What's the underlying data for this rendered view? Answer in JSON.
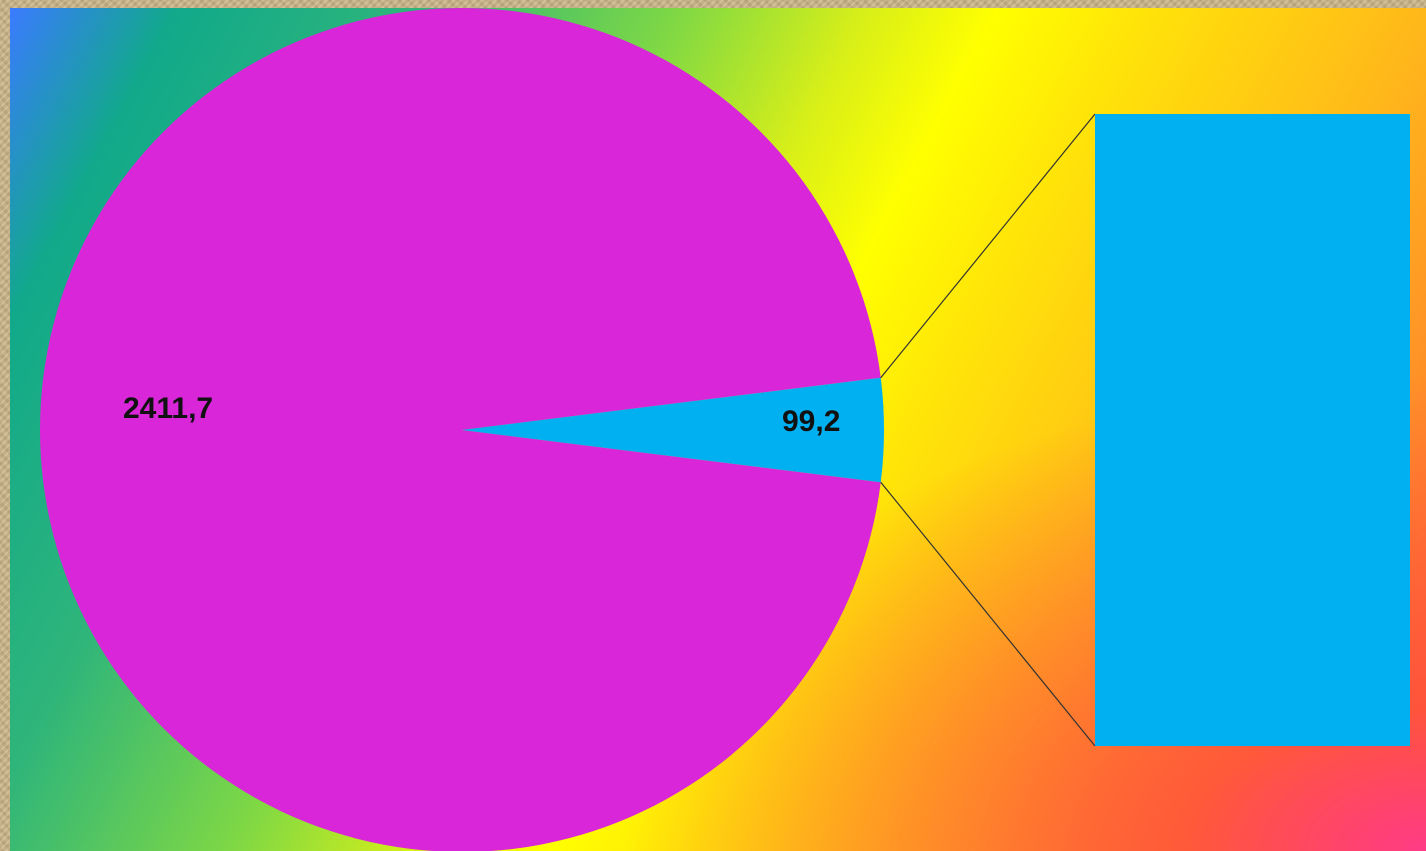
{
  "chart_data": {
    "type": "pie",
    "subtype": "pie-of-pie",
    "slices": [
      {
        "label": "2411,7",
        "value": 2411.7,
        "color": "#d826d8"
      },
      {
        "label": "99,2",
        "value": 99.2,
        "color": "#00b0f0"
      }
    ],
    "secondary": {
      "shape": "bar",
      "values": [
        99.2
      ],
      "color": "#00b0f0"
    },
    "title": "",
    "legend": "none"
  }
}
